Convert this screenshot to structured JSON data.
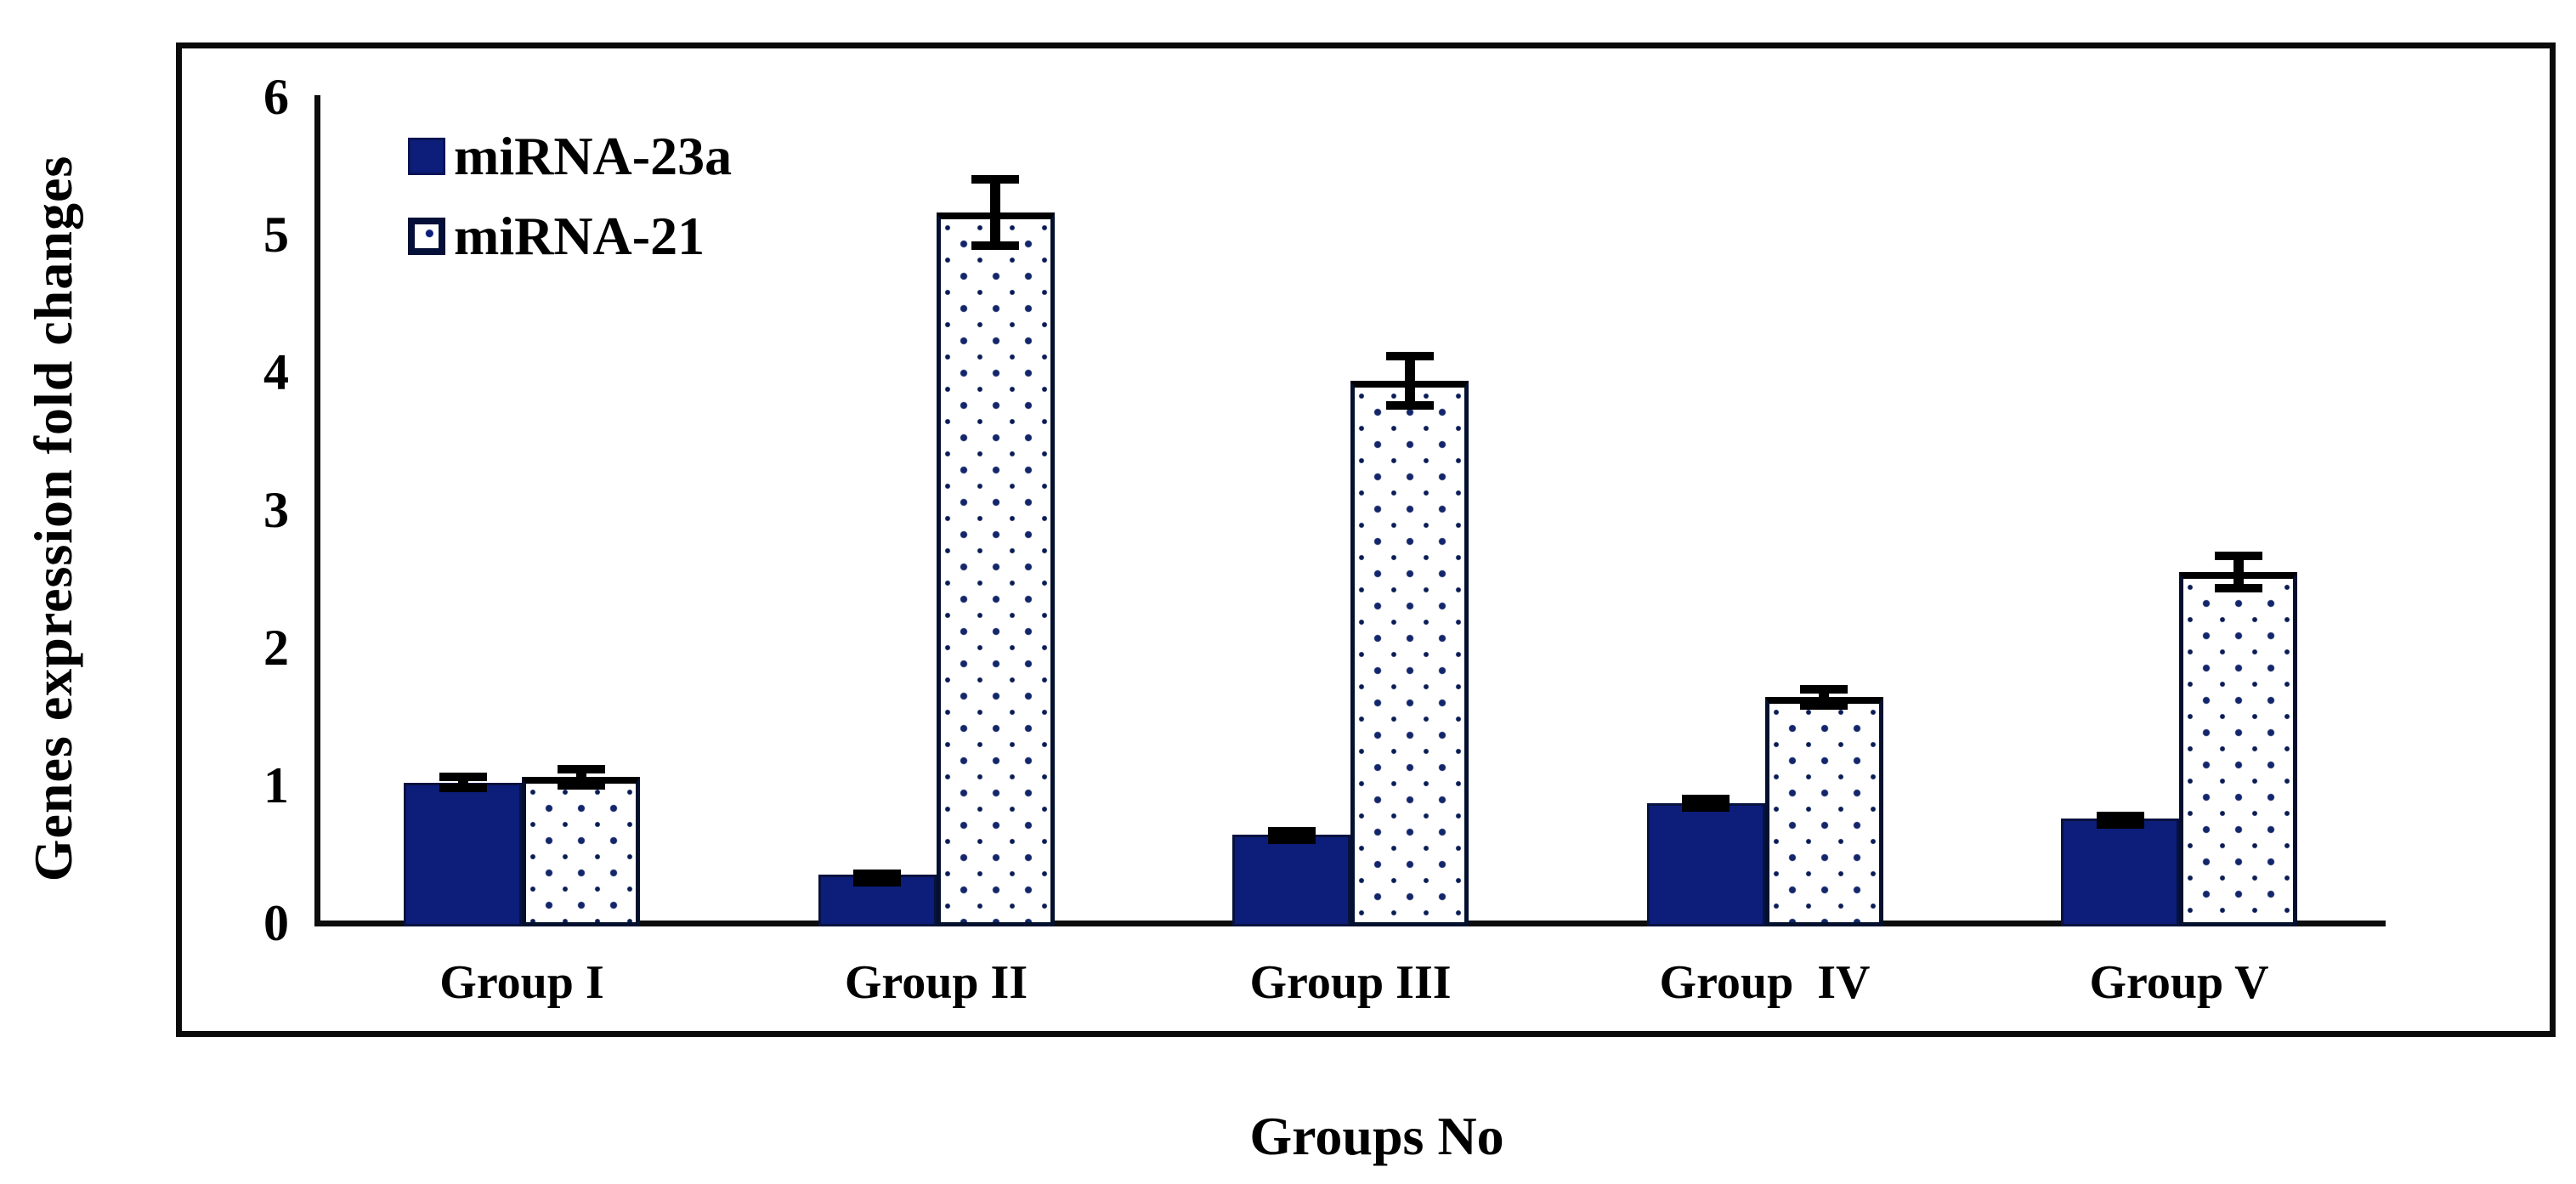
{
  "figure": {
    "y_axis_title": "Genes expression fold changes",
    "x_axis_title": "Groups No"
  },
  "colors": {
    "bar_fill_navy": "#0c1d7a",
    "bar_outline": "#03102e",
    "dot_pattern": "#13266b",
    "axis": "#0d0d0d",
    "error_bar": "#000000"
  },
  "chart_data": {
    "type": "bar",
    "title": "",
    "xlabel": "Groups No",
    "ylabel": "Genes expression fold changes",
    "categories": [
      "Group I",
      "Group II",
      "Group III",
      "Group  IV",
      "Group V"
    ],
    "series": [
      {
        "name": "miRNA-23a",
        "style": "solid-navy",
        "values": [
          1.02,
          0.35,
          0.64,
          0.87,
          0.76
        ],
        "errors": [
          0.07,
          0.04,
          0.06,
          0.06,
          0.05
        ]
      },
      {
        "name": "miRNA-21",
        "style": "white-dotted",
        "values": [
          1.06,
          5.16,
          3.94,
          1.64,
          2.55
        ],
        "errors": [
          0.09,
          0.27,
          0.21,
          0.09,
          0.15
        ]
      }
    ],
    "ylim": [
      0,
      6
    ],
    "yticks": [
      0,
      1,
      2,
      3,
      4,
      5,
      6
    ],
    "grid": false,
    "error_bars": true,
    "legend_position": "top-left-inside",
    "bars_per_group": 2
  }
}
